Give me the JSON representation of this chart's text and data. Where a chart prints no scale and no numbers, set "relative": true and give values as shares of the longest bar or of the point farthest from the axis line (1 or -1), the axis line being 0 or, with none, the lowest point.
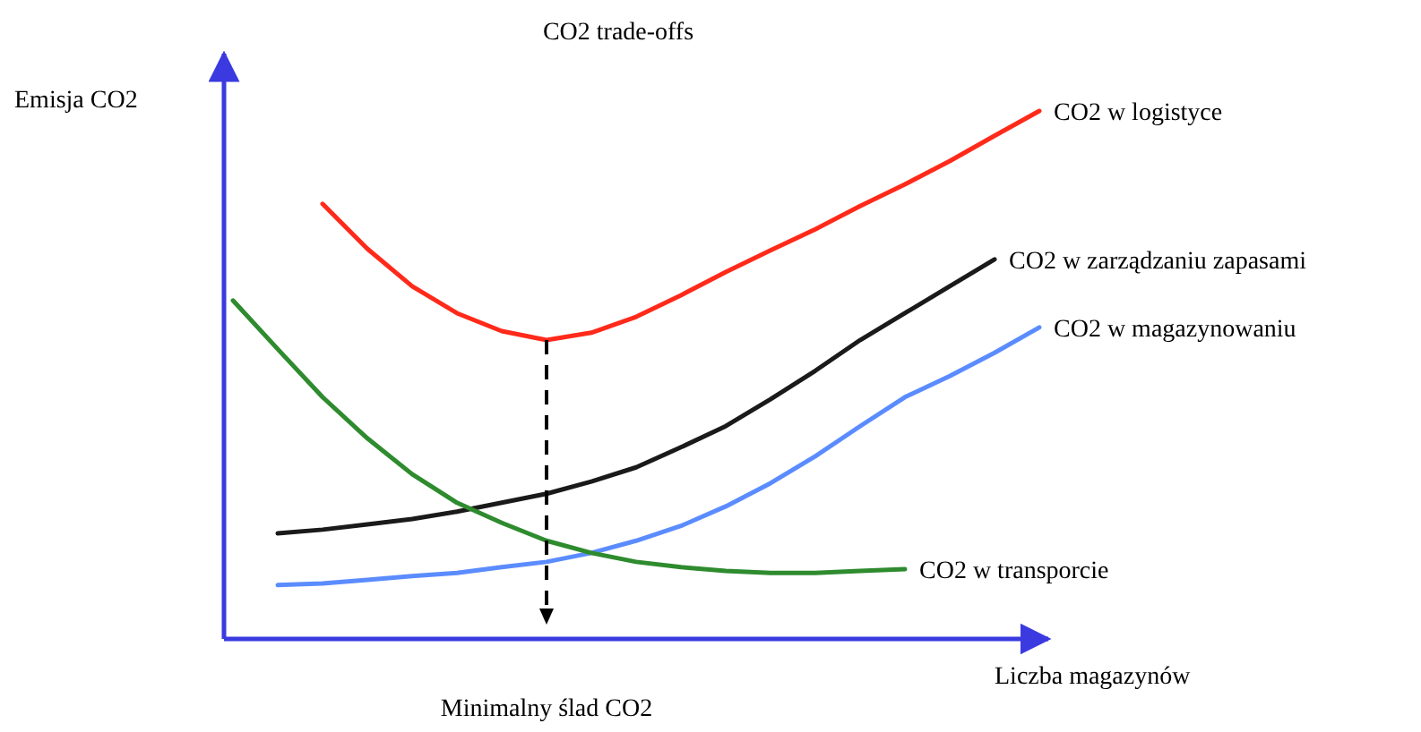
{
  "chart_data": {
    "type": "line",
    "title": "CO2 trade-offs",
    "xlabel": "Liczba magazynów",
    "ylabel": "Emisja CO2",
    "relative": true,
    "categories": [
      null,
      null,
      null,
      null,
      null,
      null,
      null,
      null,
      null,
      null,
      null,
      null,
      null,
      null,
      null,
      null,
      null,
      null,
      null
    ],
    "series": [
      {
        "name": "CO2 w logistyce",
        "color": "#ff2a1a",
        "values": [
          null,
          null,
          0.824,
          0.739,
          0.668,
          0.617,
          0.583,
          0.566,
          0.58,
          0.61,
          0.651,
          0.695,
          0.736,
          0.776,
          0.82,
          0.861,
          0.905,
          0.953,
          1
        ]
      },
      {
        "name": "CO2 w zarządzaniu zapasami",
        "color": "#1a1a1a",
        "values": [
          null,
          0.2,
          0.207,
          0.217,
          0.227,
          0.241,
          0.258,
          0.275,
          0.298,
          0.325,
          0.363,
          0.403,
          0.454,
          0.508,
          0.566,
          0.617,
          0.668,
          0.719,
          null
        ]
      },
      {
        "name": "CO2 w magazynowaniu",
        "color": "#5b8cff",
        "values": [
          null,
          0.102,
          0.105,
          0.112,
          0.119,
          0.125,
          0.136,
          0.146,
          0.163,
          0.186,
          0.214,
          0.251,
          0.295,
          0.346,
          0.403,
          0.458,
          0.498,
          0.542,
          0.59
        ]
      },
      {
        "name": "CO2 w transporcie",
        "color": "#2e8b2e",
        "values": [
          0.641,
          0.549,
          0.458,
          0.38,
          0.312,
          0.258,
          0.22,
          0.186,
          0.163,
          0.146,
          0.136,
          0.129,
          0.125,
          0.125,
          0.129,
          0.132,
          null,
          null,
          null
        ]
      }
    ],
    "annotations": [
      "Minimalny ślad CO2"
    ]
  }
}
